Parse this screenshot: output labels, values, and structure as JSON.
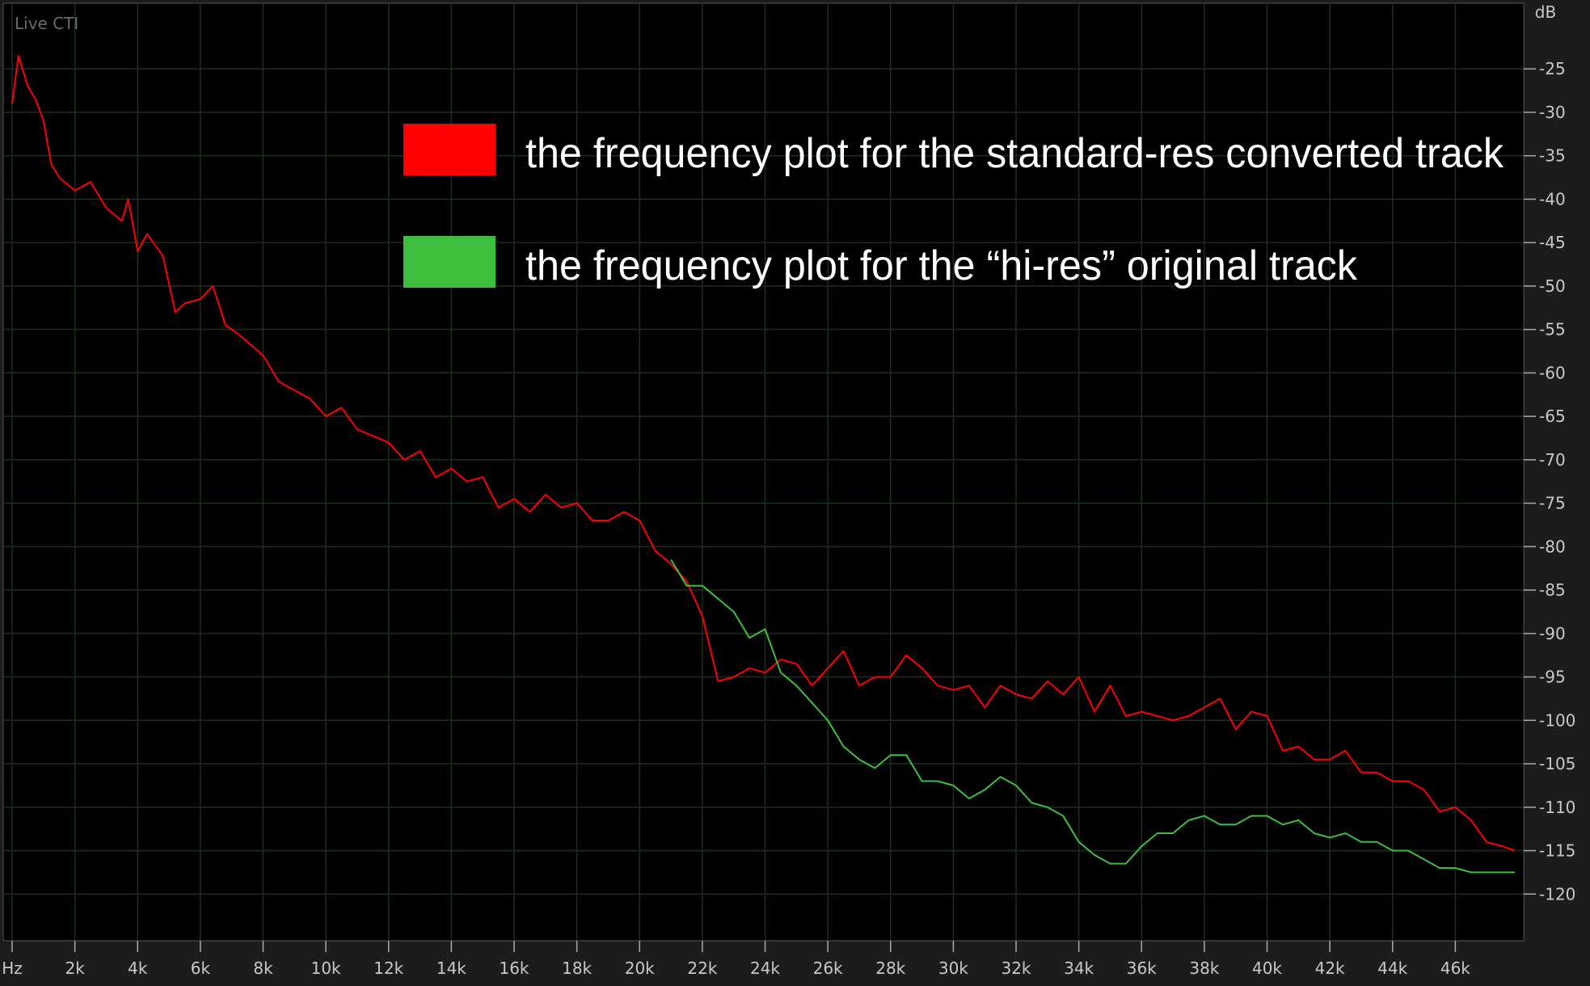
{
  "chart_data": {
    "type": "line",
    "corner_label": "Live CTI",
    "y_axis_label": "dB",
    "grid": true,
    "xlim": [
      0,
      48000
    ],
    "ylim": [
      -125,
      -18
    ],
    "xticks": [
      {
        "value": 0,
        "label": "Hz"
      },
      {
        "value": 2000,
        "label": "2k"
      },
      {
        "value": 4000,
        "label": "4k"
      },
      {
        "value": 6000,
        "label": "6k"
      },
      {
        "value": 8000,
        "label": "8k"
      },
      {
        "value": 10000,
        "label": "10k"
      },
      {
        "value": 12000,
        "label": "12k"
      },
      {
        "value": 14000,
        "label": "14k"
      },
      {
        "value": 16000,
        "label": "16k"
      },
      {
        "value": 18000,
        "label": "18k"
      },
      {
        "value": 20000,
        "label": "20k"
      },
      {
        "value": 22000,
        "label": "22k"
      },
      {
        "value": 24000,
        "label": "24k"
      },
      {
        "value": 26000,
        "label": "26k"
      },
      {
        "value": 28000,
        "label": "28k"
      },
      {
        "value": 30000,
        "label": "30k"
      },
      {
        "value": 32000,
        "label": "32k"
      },
      {
        "value": 34000,
        "label": "34k"
      },
      {
        "value": 36000,
        "label": "36k"
      },
      {
        "value": 38000,
        "label": "38k"
      },
      {
        "value": 40000,
        "label": "40k"
      },
      {
        "value": 42000,
        "label": "42k"
      },
      {
        "value": 44000,
        "label": "44k"
      },
      {
        "value": 46000,
        "label": "46k"
      }
    ],
    "yticks": [
      -25,
      -30,
      -35,
      -40,
      -45,
      -50,
      -55,
      -60,
      -65,
      -70,
      -75,
      -80,
      -85,
      -90,
      -95,
      -100,
      -105,
      -110,
      -115,
      -120
    ],
    "series": [
      {
        "name": "the frequency plot for the standard-res converted track",
        "color": "#ff0000",
        "x": [
          0,
          200,
          500,
          750,
          1000,
          1250,
          1500,
          2000,
          2500,
          3000,
          3500,
          3700,
          4000,
          4300,
          4800,
          5200,
          5500,
          6000,
          6400,
          6800,
          7200,
          8000,
          8500,
          9000,
          9500,
          10000,
          10500,
          11000,
          12000,
          12500,
          13000,
          13500,
          14000,
          14500,
          15000,
          15500,
          16000,
          16500,
          17000,
          17500,
          18000,
          18500,
          19000,
          19500,
          20000,
          20500,
          21000,
          21500,
          22000,
          22500,
          23000,
          23500,
          24000,
          24500,
          25000,
          25500,
          26000,
          26500,
          27000,
          27500,
          28000,
          28500,
          29000,
          29500,
          30000,
          30500,
          31000,
          31500,
          32000,
          32500,
          33000,
          33500,
          34000,
          34500,
          35000,
          35500,
          36000,
          36500,
          37000,
          37500,
          38000,
          38500,
          39000,
          39500,
          40000,
          40500,
          41000,
          41500,
          42000,
          42500,
          43000,
          43500,
          44000,
          44500,
          45000,
          45500,
          46000,
          46500,
          47000,
          47500,
          47900
        ],
        "values": [
          -29,
          -23.5,
          -27,
          -28.5,
          -31,
          -36,
          -37.5,
          -39,
          -38,
          -41,
          -42.5,
          -40,
          -46,
          -44,
          -46.5,
          -53,
          -52,
          -51.5,
          -50,
          -54.5,
          -55.5,
          -58,
          -61,
          -62,
          -63,
          -65,
          -64,
          -66.5,
          -68,
          -70,
          -69,
          -72,
          -71,
          -72.5,
          -72,
          -75.5,
          -74.5,
          -76,
          -74,
          -75.5,
          -75,
          -77,
          -77,
          -76,
          -77,
          -80.5,
          -82,
          -84,
          -88,
          -95.5,
          -95,
          -94,
          -94.5,
          -93,
          -93.5,
          -96,
          -94,
          -92,
          -96,
          -95,
          -95,
          -92.5,
          -94,
          -96,
          -96.5,
          -96,
          -98.5,
          -96,
          -97,
          -97.5,
          -95.5,
          -97,
          -95,
          -99,
          -96,
          -99.5,
          -99,
          -99.5,
          -100,
          -99.5,
          -98.5,
          -97.5,
          -101,
          -99,
          -99.5,
          -103.5,
          -103,
          -104.5,
          -104.5,
          -103.5,
          -106,
          -106,
          -107,
          -107,
          -108,
          -110.5,
          -110,
          -111.5,
          -114,
          -114.5,
          -115
        ]
      },
      {
        "name": "the frequency plot for the “hi-res” original track",
        "color": "#3dbe3d",
        "x": [
          21000,
          21500,
          22000,
          22500,
          23000,
          23500,
          24000,
          24500,
          25000,
          25500,
          26000,
          26500,
          27000,
          27500,
          28000,
          28500,
          29000,
          29500,
          30000,
          30500,
          31000,
          31500,
          32000,
          32500,
          33000,
          33500,
          34000,
          34500,
          35000,
          35500,
          36000,
          36500,
          37000,
          37500,
          38000,
          38500,
          39000,
          39500,
          40000,
          40500,
          41000,
          41500,
          42000,
          42500,
          43000,
          43500,
          44000,
          44500,
          45000,
          45500,
          46000,
          46500,
          47000,
          47900
        ],
        "values": [
          -81.5,
          -84.5,
          -84.5,
          -86,
          -87.5,
          -90.5,
          -89.5,
          -94.5,
          -96,
          -98,
          -100,
          -103,
          -104.5,
          -105.5,
          -104,
          -104,
          -107,
          -107,
          -107.5,
          -109,
          -108,
          -106.5,
          -107.5,
          -109.5,
          -110,
          -111,
          -114,
          -115.5,
          -116.5,
          -116.5,
          -114.5,
          -113,
          -113,
          -111.5,
          -111,
          -112,
          -112,
          -111,
          -111,
          -112,
          -111.5,
          -113,
          -113.5,
          -113,
          -114,
          -114,
          -115,
          -115,
          -116,
          -117,
          -117,
          -117.5,
          -117.5,
          -117.5
        ]
      }
    ]
  }
}
